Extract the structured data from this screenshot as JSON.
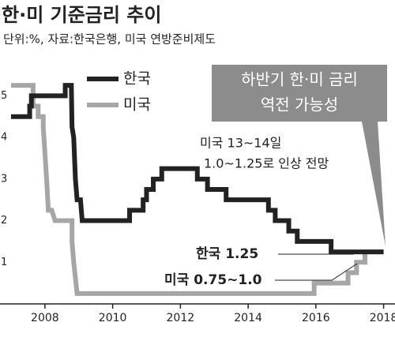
{
  "chart_data": {
    "type": "line",
    "title": "한·미 기준금리 추이",
    "subtitle": "단위:%, 자료:한국은행, 미국 연방준비제도",
    "callout": [
      "하반기 한·미 금리",
      "역전 가능성"
    ],
    "annotations": [
      "미국 13~14일",
      "1.0~1.25로 인상 전망",
      "한국 1.25",
      "미국 0.75~1.0"
    ],
    "xlim": [
      2007,
      2018.15
    ],
    "xticks": [
      2008,
      2010,
      2012,
      2014,
      2016,
      2018
    ],
    "ylim": [
      0,
      5.5
    ],
    "yticks": [
      1,
      2,
      3,
      4,
      5
    ],
    "series": [
      {
        "name": "한국",
        "color": "#222222",
        "x": [
          2007.0,
          2007.55,
          2007.55,
          2007.6,
          2007.6,
          2008.6,
          2008.6,
          2008.78,
          2008.8,
          2008.85,
          2008.9,
          2008.95,
          2009.05,
          2009.1,
          2010.5,
          2010.5,
          2010.9,
          2010.9,
          2011.0,
          2011.0,
          2011.2,
          2011.2,
          2011.45,
          2011.45,
          2012.5,
          2012.5,
          2012.8,
          2012.8,
          2013.35,
          2013.35,
          2014.6,
          2014.6,
          2014.8,
          2014.8,
          2015.2,
          2015.2,
          2015.45,
          2015.45,
          2016.45,
          2016.45,
          2018.0
        ],
        "values": [
          4.5,
          4.5,
          4.75,
          4.75,
          5.0,
          5.0,
          5.25,
          5.25,
          4.25,
          4.0,
          3.0,
          2.5,
          2.5,
          2.0,
          2.0,
          2.25,
          2.25,
          2.5,
          2.5,
          2.75,
          2.75,
          3.0,
          3.0,
          3.25,
          3.25,
          3.0,
          3.0,
          2.75,
          2.75,
          2.5,
          2.5,
          2.25,
          2.25,
          2.0,
          2.0,
          1.75,
          1.75,
          1.5,
          1.5,
          1.25,
          1.25
        ]
      },
      {
        "name": "미국",
        "color": "#a6a6a6",
        "x": [
          2007.0,
          2007.65,
          2007.65,
          2007.8,
          2007.8,
          2007.95,
          2007.95,
          2008.05,
          2008.1,
          2008.2,
          2008.3,
          2008.8,
          2008.8,
          2008.85,
          2008.95,
          2015.95,
          2015.95,
          2016.95,
          2016.95,
          2017.2,
          2017.2,
          2017.45,
          2017.45,
          2018.0
        ],
        "values": [
          5.25,
          5.25,
          4.75,
          4.75,
          4.5,
          4.5,
          4.25,
          3.0,
          2.25,
          2.25,
          2.0,
          2.0,
          1.5,
          1.0,
          0.25,
          0.25,
          0.5,
          0.5,
          0.75,
          0.75,
          1.0,
          1.0,
          1.25,
          1.25
        ]
      }
    ]
  }
}
